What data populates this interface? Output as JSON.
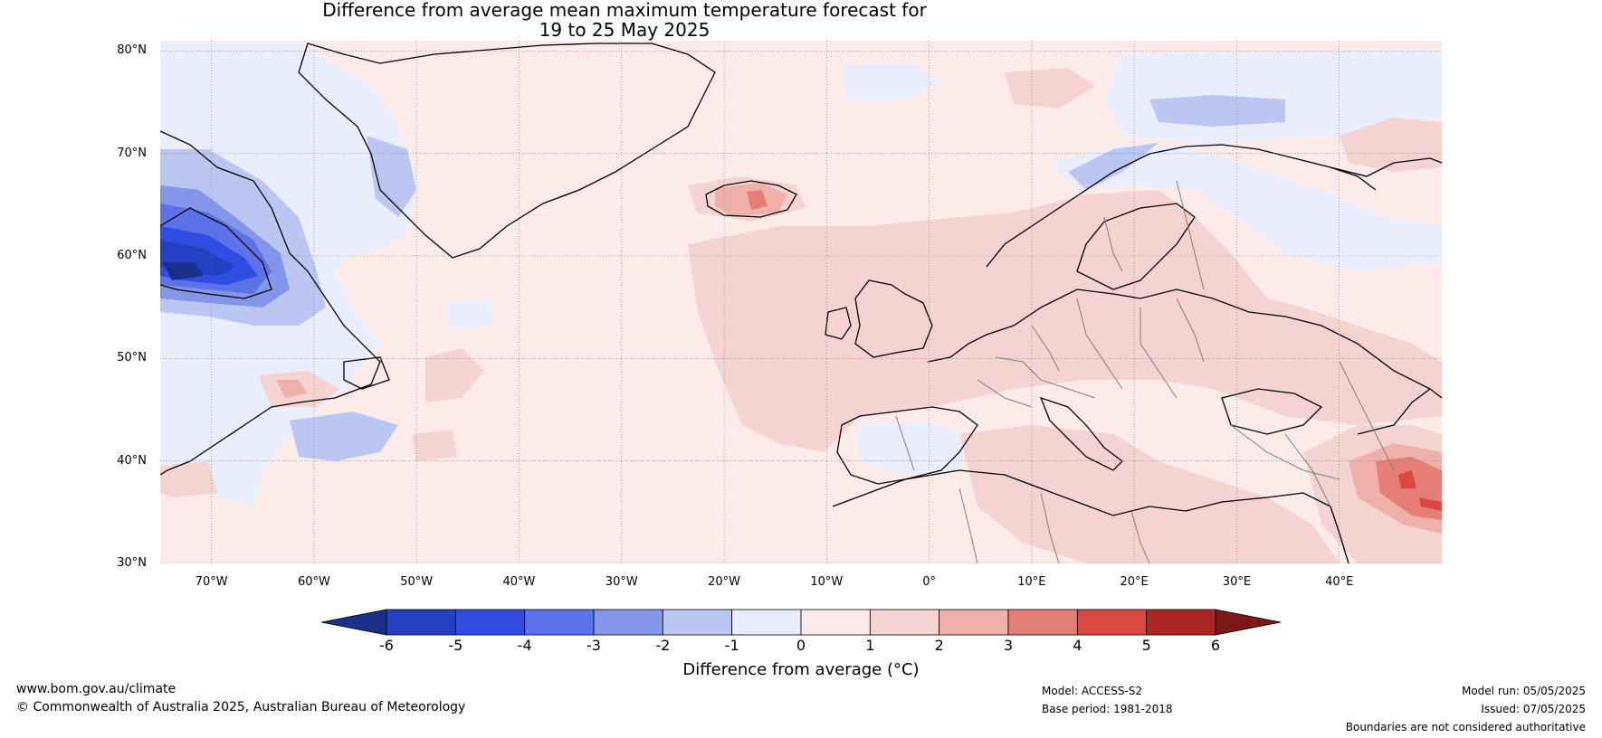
{
  "title": {
    "line1": "Difference from average mean maximum temperature forecast for",
    "line2": "19 to 25 May 2025"
  },
  "map": {
    "lon_range": [
      -75,
      50
    ],
    "lat_range": [
      30,
      81
    ],
    "lat_ticks": [
      {
        "lat": 80,
        "label": "80°N"
      },
      {
        "lat": 70,
        "label": "70°N"
      },
      {
        "lat": 60,
        "label": "60°N"
      },
      {
        "lat": 50,
        "label": "50°N"
      },
      {
        "lat": 40,
        "label": "40°N"
      },
      {
        "lat": 30,
        "label": "30°N"
      }
    ],
    "lon_ticks": [
      {
        "lon": -70,
        "label": "70°W"
      },
      {
        "lon": -60,
        "label": "60°W"
      },
      {
        "lon": -50,
        "label": "50°W"
      },
      {
        "lon": -40,
        "label": "40°W"
      },
      {
        "lon": -30,
        "label": "30°W"
      },
      {
        "lon": -20,
        "label": "20°W"
      },
      {
        "lon": -10,
        "label": "10°W"
      },
      {
        "lon": 0,
        "label": "0°"
      },
      {
        "lon": 10,
        "label": "10°E"
      },
      {
        "lon": 20,
        "label": "20°E"
      },
      {
        "lon": 30,
        "label": "30°E"
      },
      {
        "lon": 40,
        "label": "40°E"
      }
    ]
  },
  "colorbar": {
    "label": "Difference from average (°C)",
    "ticks": [
      "-6",
      "-5",
      "-4",
      "-3",
      "-2",
      "-1",
      "0",
      "1",
      "2",
      "3",
      "4",
      "5",
      "6"
    ],
    "colors": [
      "#1a2f8a",
      "#2440c2",
      "#2f4de0",
      "#5b72e8",
      "#8396ea",
      "#bcc6f3",
      "#e9edfc",
      "#fcebe9",
      "#f5d3d1",
      "#efb0aa",
      "#e57e76",
      "#d84a40",
      "#a92823",
      "#7a1917"
    ]
  },
  "footer": {
    "url": "www.bom.gov.au/climate",
    "copyright": "© Commonwealth of Australia 2025, Australian Bureau of Meteorology",
    "model": "Model: ACCESS-S2",
    "base_period": "Base period: 1981-2018",
    "model_run": "Model run: 05/05/2025",
    "issued": "Issued: 07/05/2025",
    "disclaimer": "Boundaries are not considered authoritative"
  }
}
